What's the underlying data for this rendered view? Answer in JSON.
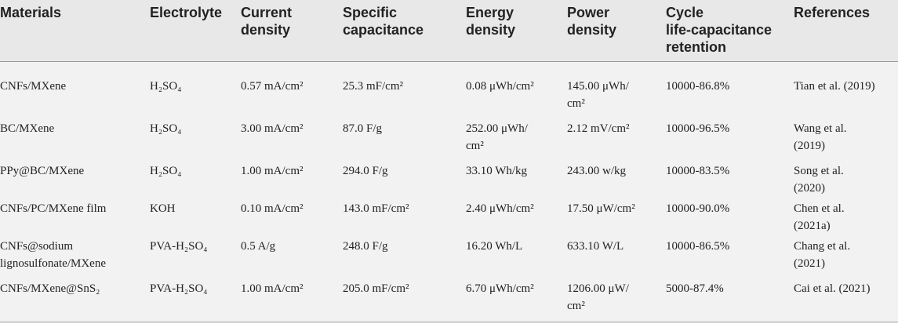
{
  "table": {
    "headers": [
      [
        "Materials"
      ],
      [
        "Electrolyte"
      ],
      [
        "Current",
        "density"
      ],
      [
        "Specific",
        "capacitance"
      ],
      [
        "Energy",
        "density"
      ],
      [
        "Power",
        "density"
      ],
      [
        "Cycle",
        "life-capacitance",
        "retention"
      ],
      [
        "References"
      ]
    ],
    "rows": [
      [
        [
          "CNFs/MXene"
        ],
        [
          "H₂SO₄"
        ],
        [
          "0.57 mA/cm²"
        ],
        [
          "25.3 mF/cm²"
        ],
        [
          "0.08 μWh/cm²"
        ],
        [
          "145.00 μWh/",
          "cm²"
        ],
        [
          "10000-86.8%"
        ],
        [
          "Tian et al. (2019)"
        ]
      ],
      [
        [
          "BC/MXene"
        ],
        [
          "H₂SO₄"
        ],
        [
          "3.00 mA/cm²"
        ],
        [
          "87.0 F/g"
        ],
        [
          "252.00 μWh/",
          "cm²"
        ],
        [
          "2.12 mV/cm²"
        ],
        [
          "10000-96.5%"
        ],
        [
          "Wang et al.",
          "(2019)"
        ]
      ],
      [
        [
          "PPy@BC/MXene"
        ],
        [
          "H₂SO₄"
        ],
        [
          "1.00 mA/cm²"
        ],
        [
          "294.0 F/g"
        ],
        [
          "33.10 Wh/kg"
        ],
        [
          "243.00 w/kg"
        ],
        [
          "10000-83.5%"
        ],
        [
          "Song et al.",
          "(2020)"
        ]
      ],
      [
        [
          "CNFs/PC/MXene film"
        ],
        [
          "KOH"
        ],
        [
          "0.10 mA/cm²"
        ],
        [
          "143.0 mF/cm²"
        ],
        [
          "2.40 μWh/cm²"
        ],
        [
          "17.50 μW/cm²"
        ],
        [
          "10000-90.0%"
        ],
        [
          "Chen et al.",
          "(2021a)"
        ]
      ],
      [
        [
          "CNFs@sodium",
          "lignosulfonate/MXene"
        ],
        [
          "PVA-H₂SO₄"
        ],
        [
          "0.5 A/g"
        ],
        [
          "248.0 F/g"
        ],
        [
          "16.20 Wh/L"
        ],
        [
          "633.10 W/L"
        ],
        [
          "10000-86.5%"
        ],
        [
          "Chang et al.",
          "(2021)"
        ]
      ],
      [
        [
          "CNFs/MXene@SnS₂"
        ],
        [
          "PVA-H₂SO₄"
        ],
        [
          "1.00 mA/cm²"
        ],
        [
          "205.0 mF/cm²"
        ],
        [
          "6.70 μWh/cm²"
        ],
        [
          "1206.00 μW/",
          "cm²"
        ],
        [
          "5000-87.4%"
        ],
        [
          "Cai et al. (2021)"
        ]
      ]
    ]
  }
}
